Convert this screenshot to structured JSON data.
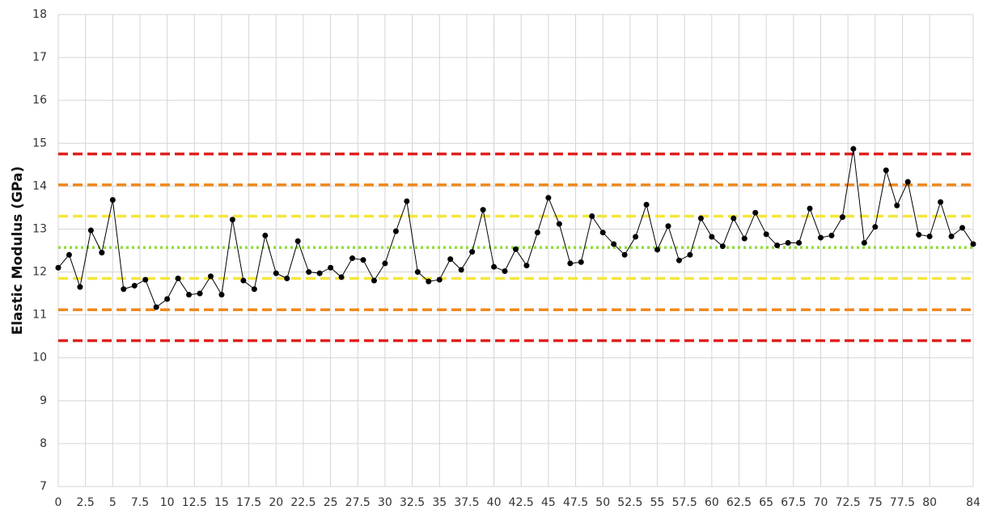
{
  "chart_data": {
    "type": "line",
    "y_label": "Elastic Modulus (GPa)",
    "xlim": [
      0,
      84
    ],
    "xticks": [
      0,
      2.5,
      5,
      7.5,
      10,
      12.5,
      15,
      17.5,
      20,
      22.5,
      25,
      27.5,
      30,
      32.5,
      35,
      37.5,
      40,
      42.5,
      45,
      47.5,
      50,
      52.5,
      55,
      57.5,
      60,
      62.5,
      65,
      67.5,
      70,
      72.5,
      75,
      77.5,
      80,
      84
    ],
    "ylim": [
      7,
      18
    ],
    "yticks": [
      7,
      8,
      9,
      10,
      11,
      12,
      13,
      14,
      15,
      16,
      17,
      18
    ],
    "grid": true,
    "limits": [
      {
        "value": 14.75,
        "color": "#e0201c",
        "style": "dashed"
      },
      {
        "value": 14.03,
        "color": "#f08a1c",
        "style": "dashed"
      },
      {
        "value": 13.3,
        "color": "#f5e63c",
        "style": "dashed"
      },
      {
        "value": 12.57,
        "color": "#8ede38",
        "style": "dotted"
      },
      {
        "value": 11.85,
        "color": "#f5e63c",
        "style": "dashed"
      },
      {
        "value": 11.12,
        "color": "#f08a1c",
        "style": "dashed"
      },
      {
        "value": 10.4,
        "color": "#e0201c",
        "style": "dashed"
      }
    ],
    "series": [
      {
        "color": "#000000",
        "x": [
          0,
          1,
          2,
          3,
          4,
          5,
          6,
          7,
          8,
          9,
          10,
          11,
          12,
          13,
          14,
          15,
          16,
          17,
          18,
          19,
          20,
          21,
          22,
          23,
          24,
          25,
          26,
          27,
          28,
          29,
          30,
          31,
          32,
          33,
          34,
          35,
          36,
          37,
          38,
          39,
          40,
          41,
          42,
          43,
          44,
          45,
          46,
          47,
          48,
          49,
          50,
          51,
          52,
          53,
          54,
          55,
          56,
          57,
          58,
          59,
          60,
          61,
          62,
          63,
          64,
          65,
          66,
          67,
          68,
          69,
          70,
          71,
          72,
          73,
          74,
          75,
          76,
          77,
          78,
          79,
          80,
          81,
          82,
          83,
          84
        ],
        "values": [
          12.1,
          12.4,
          11.65,
          12.97,
          12.45,
          13.68,
          11.6,
          11.68,
          11.82,
          11.18,
          11.37,
          11.85,
          11.47,
          11.5,
          11.9,
          11.47,
          13.22,
          11.8,
          11.6,
          12.85,
          11.97,
          11.85,
          12.72,
          12.0,
          11.97,
          12.1,
          11.88,
          12.32,
          12.28,
          11.8,
          12.2,
          12.95,
          13.65,
          12.0,
          11.78,
          11.82,
          12.3,
          12.05,
          12.47,
          13.45,
          12.12,
          12.02,
          12.53,
          12.15,
          12.92,
          13.73,
          13.12,
          12.2,
          12.23,
          13.3,
          12.92,
          12.65,
          12.4,
          12.82,
          13.57,
          12.52,
          13.07,
          12.27,
          12.4,
          13.25,
          12.82,
          12.6,
          13.25,
          12.78,
          13.38,
          12.88,
          12.62,
          12.68,
          12.68,
          13.48,
          12.8,
          12.85,
          13.28,
          14.87,
          12.68,
          13.05,
          14.37,
          13.55,
          14.1,
          12.87,
          12.83,
          13.63,
          12.83,
          13.03,
          12.65
        ]
      }
    ]
  }
}
